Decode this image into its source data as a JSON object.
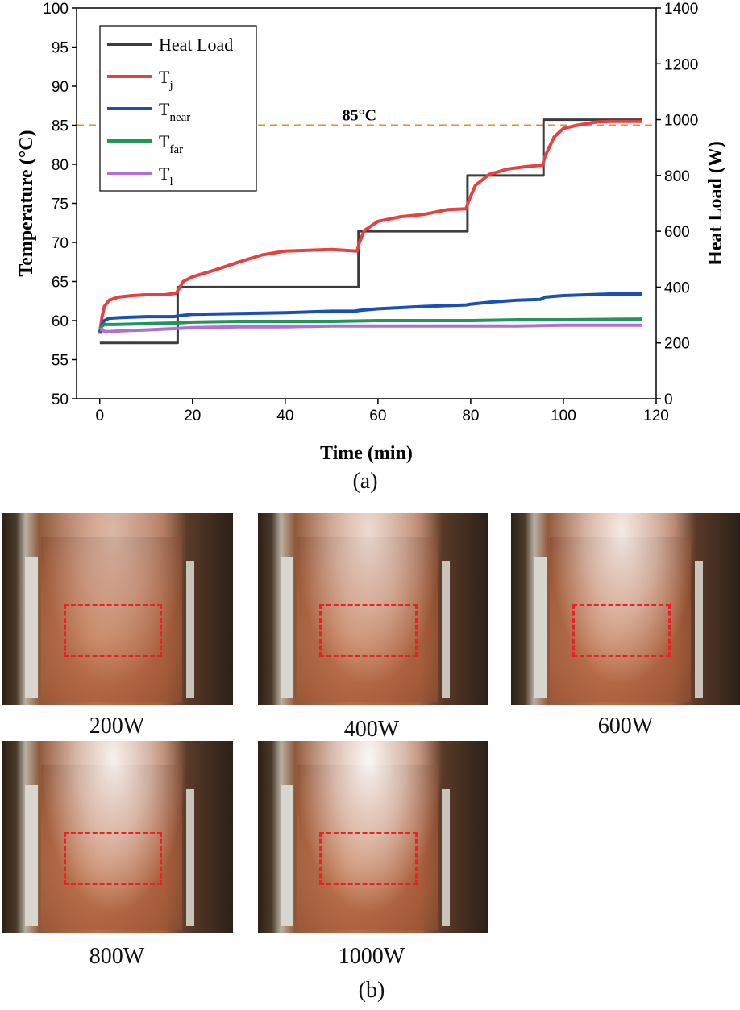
{
  "chart_data": {
    "type": "line",
    "xlabel": "Time (min)",
    "ylabel_left": "Temperature (°C)",
    "ylabel_right": "Heat Load (W)",
    "xlim": [
      -5,
      120
    ],
    "ylim_left": [
      50,
      100
    ],
    "ylim_right": [
      0,
      1400
    ],
    "xticks": [
      "0",
      "20",
      "40",
      "60",
      "80",
      "100",
      "120"
    ],
    "yticks_left": [
      "50",
      "55",
      "60",
      "65",
      "70",
      "75",
      "80",
      "85",
      "90",
      "95",
      "100"
    ],
    "yticks_right": [
      "0",
      "200",
      "400",
      "600",
      "800",
      "1000",
      "1200",
      "1400"
    ],
    "legend_position": "top-left",
    "reference_line": {
      "value": 85,
      "label": "85°C",
      "color": "#ee8b2e"
    },
    "series": [
      {
        "name": "Heat Load",
        "sub": "",
        "color": "#3d3d3d",
        "axis": "right",
        "x": [
          0,
          16.8,
          16.8,
          55.8,
          55.8,
          79.3,
          79.3,
          95.7,
          95.7,
          117
        ],
        "y": [
          200,
          200,
          400,
          400,
          600,
          600,
          800,
          800,
          1000,
          1000
        ]
      },
      {
        "name": "T",
        "sub": "j",
        "color": "#e84040",
        "axis": "left",
        "x": [
          0,
          0.5,
          1,
          2,
          4,
          7,
          10,
          14,
          16.5,
          17,
          18,
          20,
          25,
          30,
          35,
          40,
          45,
          50,
          55.5,
          56,
          57,
          60,
          65,
          70,
          75,
          79,
          79.5,
          81,
          84,
          88,
          92,
          95.5,
          96,
          98,
          100,
          103,
          107,
          110,
          117
        ],
        "y": [
          58.3,
          60.5,
          61.8,
          62.6,
          63.0,
          63.2,
          63.3,
          63.3,
          63.5,
          64.0,
          65.0,
          65.6,
          66.5,
          67.5,
          68.4,
          68.9,
          69.0,
          69.1,
          68.9,
          70.0,
          71.5,
          72.7,
          73.3,
          73.6,
          74.2,
          74.3,
          75.2,
          77.3,
          78.7,
          79.4,
          79.7,
          79.9,
          81.0,
          83.5,
          84.6,
          85.0,
          85.4,
          85.5,
          85.5
        ]
      },
      {
        "name": "T",
        "sub": "near",
        "color": "#1a4fba",
        "axis": "left",
        "x": [
          0,
          0.5,
          1,
          2,
          5,
          10,
          16,
          17,
          20,
          30,
          40,
          50,
          55,
          56,
          60,
          70,
          79,
          80,
          85,
          90,
          95,
          96,
          100,
          110,
          117
        ],
        "y": [
          58.5,
          59.5,
          60.0,
          60.3,
          60.4,
          60.5,
          60.5,
          60.6,
          60.8,
          60.9,
          61.0,
          61.2,
          61.2,
          61.3,
          61.5,
          61.8,
          62.0,
          62.1,
          62.4,
          62.6,
          62.7,
          63.0,
          63.2,
          63.4,
          63.4
        ]
      },
      {
        "name": "T",
        "sub": "far",
        "color": "#22965a",
        "axis": "left",
        "x": [
          0,
          0.5,
          1,
          3,
          10,
          17,
          20,
          30,
          40,
          50,
          60,
          70,
          80,
          90,
          100,
          117
        ],
        "y": [
          59.0,
          59.3,
          59.5,
          59.5,
          59.6,
          59.7,
          59.8,
          59.9,
          59.9,
          59.9,
          60.0,
          60.0,
          60.0,
          60.1,
          60.1,
          60.2
        ]
      },
      {
        "name": "T",
        "sub": "l",
        "color": "#b06fd6",
        "axis": "left",
        "x": [
          0,
          0.5,
          1,
          2,
          5,
          10,
          17,
          20,
          30,
          40,
          50,
          60,
          70,
          80,
          90,
          100,
          117
        ],
        "y": [
          58.8,
          58.9,
          58.6,
          58.6,
          58.7,
          58.8,
          59.0,
          59.1,
          59.2,
          59.2,
          59.3,
          59.3,
          59.3,
          59.3,
          59.3,
          59.4,
          59.4
        ]
      }
    ]
  },
  "panel_a_label": "(a)",
  "panel_b_label": "(b)",
  "photos": [
    {
      "caption": "200W"
    },
    {
      "caption": "400W"
    },
    {
      "caption": "600W"
    },
    {
      "caption": "800W"
    },
    {
      "caption": "1000W"
    }
  ]
}
